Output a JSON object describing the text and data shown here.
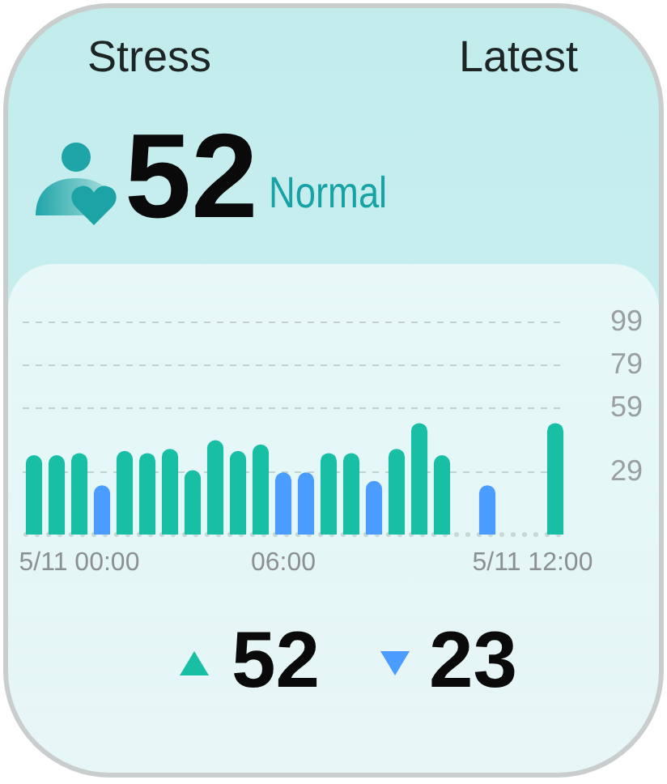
{
  "chart_data": {
    "type": "bar",
    "title": "Stress",
    "categories": [
      null,
      null,
      "5/11 00:00",
      null,
      null,
      null,
      null,
      null,
      null,
      null,
      null,
      "06:00",
      null,
      null,
      null,
      null,
      null,
      null,
      null,
      null,
      null,
      null,
      "5/11 12:00",
      null
    ],
    "values": [
      37,
      37,
      38,
      23,
      39,
      38,
      40,
      30,
      44,
      39,
      42,
      29,
      29,
      38,
      38,
      25,
      40,
      52,
      37,
      null,
      23,
      null,
      null,
      52
    ],
    "colors": [
      "#19bfa5",
      "#19bfa5",
      "#19bfa5",
      "#4a9cff",
      "#19bfa5",
      "#19bfa5",
      "#19bfa5",
      "#19bfa5",
      "#19bfa5",
      "#19bfa5",
      "#19bfa5",
      "#4a9cff",
      "#4a9cff",
      "#19bfa5",
      "#19bfa5",
      "#4a9cff",
      "#19bfa5",
      "#19bfa5",
      "#19bfa5",
      null,
      "#4a9cff",
      null,
      null,
      "#19bfa5"
    ],
    "ylim": [
      0,
      99
    ],
    "yticks": [
      29,
      59,
      79,
      99
    ],
    "grid": "y",
    "annotations": [
      "Latest",
      "52",
      "Normal",
      "52",
      "23"
    ]
  }
}
